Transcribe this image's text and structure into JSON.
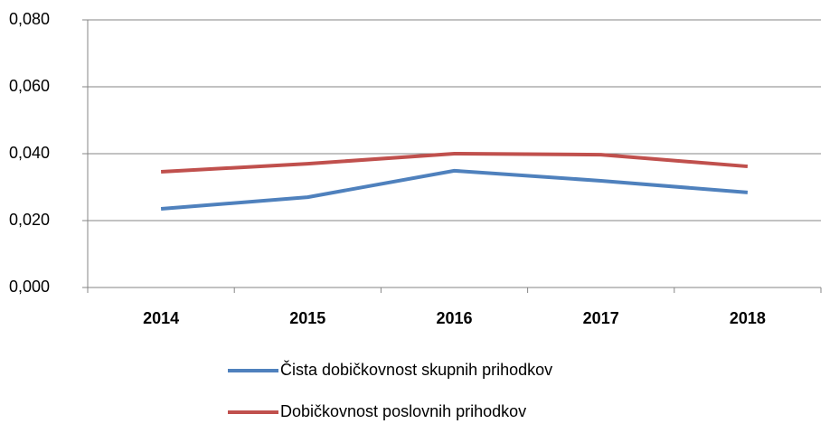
{
  "chart_data": {
    "type": "line",
    "categories": [
      "2014",
      "2015",
      "2016",
      "2017",
      "2018"
    ],
    "series": [
      {
        "name": "Čista dobičkovnost skupnih prihodkov",
        "color": "#4f81bd",
        "values": [
          0.0235,
          0.027,
          0.0349,
          0.0319,
          0.0284
        ]
      },
      {
        "name": "Dobičkovnost poslovnih prihodkov",
        "color": "#c0504d",
        "values": [
          0.0346,
          0.037,
          0.04,
          0.0397,
          0.0362
        ]
      }
    ],
    "ylim": [
      0,
      0.08
    ],
    "yticks": [
      {
        "value": 0,
        "label": "0,000"
      },
      {
        "value": 0.02,
        "label": "0,020"
      },
      {
        "value": 0.04,
        "label": "0,040"
      },
      {
        "value": 0.06,
        "label": "0,060"
      },
      {
        "value": 0.08,
        "label": "0,080"
      }
    ],
    "grid": true,
    "legend": "bottom"
  }
}
